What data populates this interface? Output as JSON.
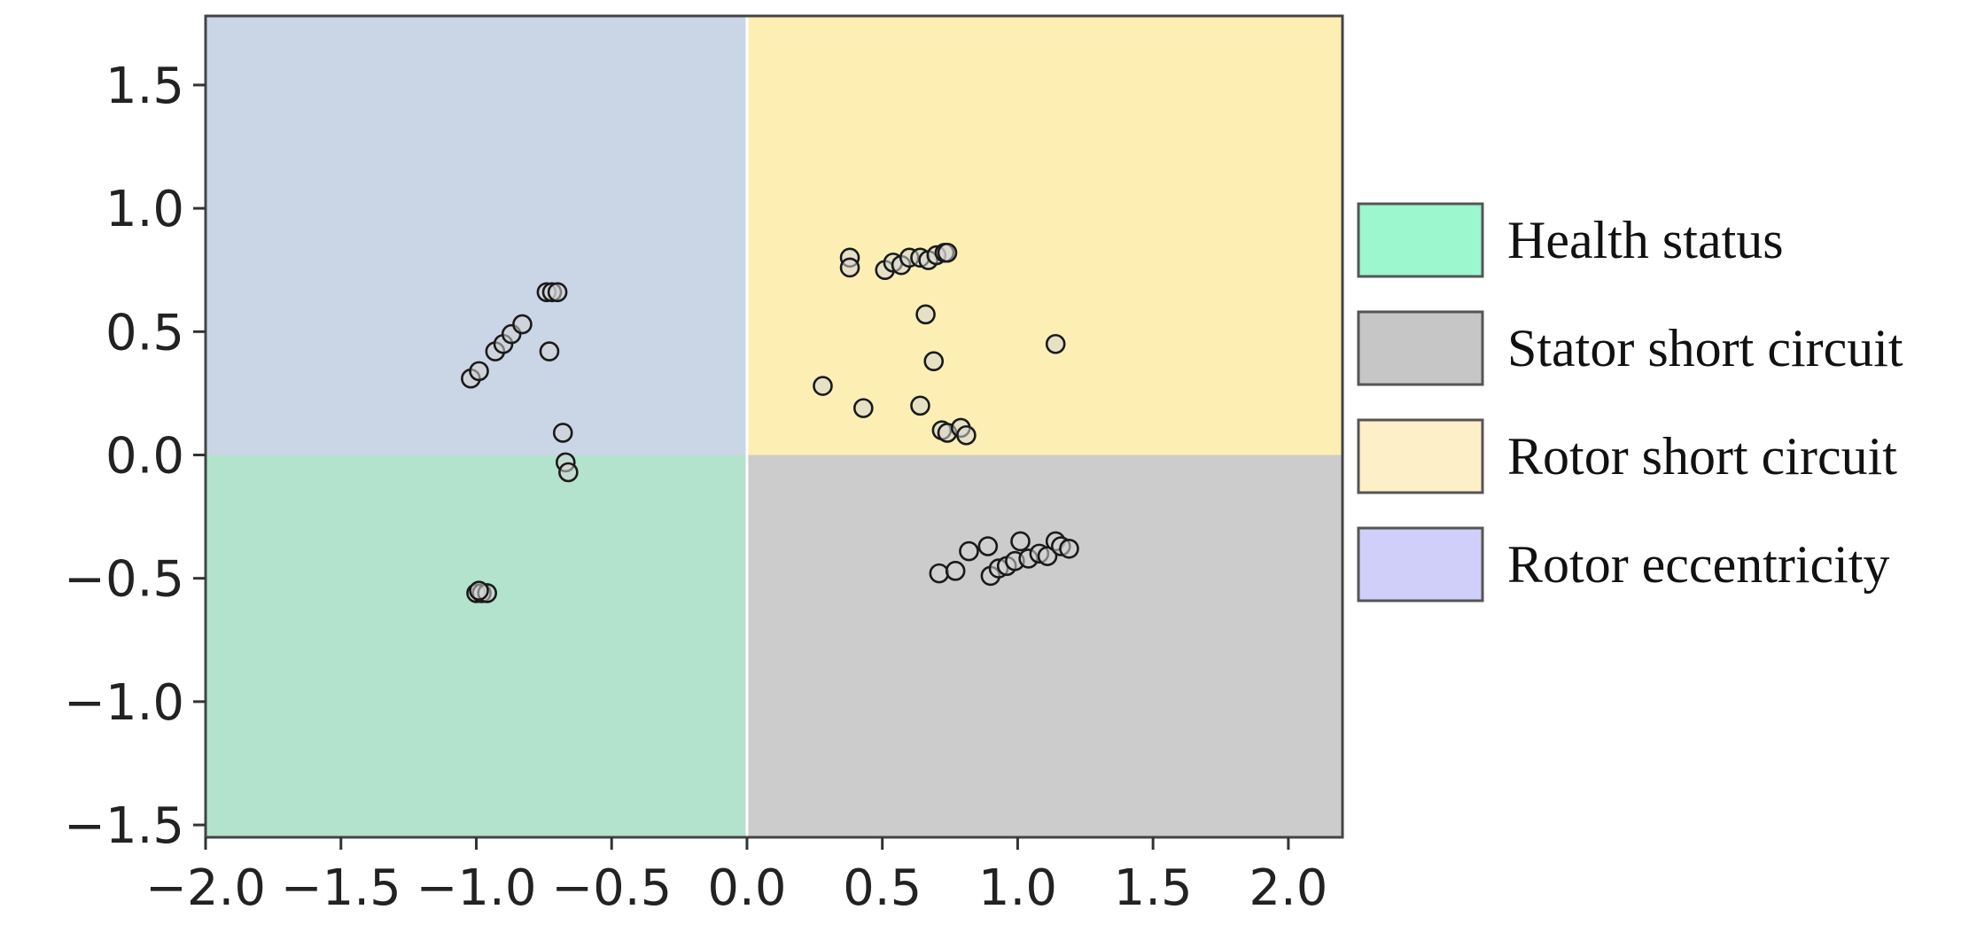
{
  "chart_data": {
    "type": "scatter",
    "title": "",
    "xlabel": "",
    "ylabel": "",
    "xlim": [
      -2.0,
      2.2
    ],
    "ylim": [
      -1.55,
      1.78
    ],
    "xticks": [
      -2.0,
      -1.5,
      -1.0,
      -0.5,
      0.0,
      0.5,
      1.0,
      1.5,
      2.0
    ],
    "xtick_labels": [
      "−2.0",
      "−1.5",
      "−1.0",
      "−0.5",
      "0.0",
      "0.5",
      "1.0",
      "1.5",
      "2.0"
    ],
    "yticks": [
      1.5,
      1.0,
      0.5,
      0.0,
      -0.5,
      -1.0,
      -1.5
    ],
    "ytick_labels": [
      "1.5",
      "1.0",
      "0.5",
      "0.0",
      "−0.5",
      "−1.0",
      "−1.5"
    ],
    "grid": false,
    "legend_position": "right",
    "regions": [
      {
        "name": "Rotor eccentricity",
        "x": [
          -2.0,
          0.0
        ],
        "y": [
          0.0,
          1.78
        ],
        "color": "#cad5e6"
      },
      {
        "name": "Rotor short circuit",
        "x": [
          0.0,
          2.2
        ],
        "y": [
          0.0,
          1.78
        ],
        "color": "#fdefb3"
      },
      {
        "name": "Health status",
        "x": [
          -2.0,
          0.0
        ],
        "y": [
          -1.55,
          0.0
        ],
        "color": "#b3e2cd"
      },
      {
        "name": "Stator short circuit",
        "x": [
          0.0,
          2.2
        ],
        "y": [
          -1.55,
          0.0
        ],
        "color": "#cccccc"
      }
    ],
    "legend": [
      {
        "label": "Health status",
        "color": "#9cf6ce"
      },
      {
        "label": "Stator short circuit",
        "color": "#c6c6c6"
      },
      {
        "label": "Rotor short circuit",
        "color": "#fdefc7"
      },
      {
        "label": "Rotor eccentricity",
        "color": "#cfcff9"
      }
    ],
    "series": [
      {
        "class": "Health status",
        "points": [
          [
            -1.0,
            -0.56
          ],
          [
            -0.98,
            -0.56
          ],
          [
            -0.96,
            -0.56
          ],
          [
            -0.99,
            -0.55
          ]
        ]
      },
      {
        "class": "Rotor eccentricity",
        "points": [
          [
            -1.02,
            0.31
          ],
          [
            -0.99,
            0.34
          ],
          [
            -0.93,
            0.42
          ],
          [
            -0.9,
            0.45
          ],
          [
            -0.87,
            0.49
          ],
          [
            -0.83,
            0.53
          ],
          [
            -0.74,
            0.66
          ],
          [
            -0.72,
            0.66
          ],
          [
            -0.7,
            0.66
          ],
          [
            -0.73,
            0.42
          ],
          [
            -0.68,
            0.09
          ],
          [
            -0.67,
            -0.03
          ],
          [
            -0.66,
            -0.07
          ]
        ]
      },
      {
        "class": "Rotor short circuit",
        "points": [
          [
            0.38,
            0.8
          ],
          [
            0.38,
            0.76
          ],
          [
            0.51,
            0.75
          ],
          [
            0.54,
            0.78
          ],
          [
            0.57,
            0.77
          ],
          [
            0.6,
            0.8
          ],
          [
            0.64,
            0.8
          ],
          [
            0.67,
            0.79
          ],
          [
            0.7,
            0.81
          ],
          [
            0.73,
            0.82
          ],
          [
            0.74,
            0.82
          ],
          [
            0.66,
            0.57
          ],
          [
            1.14,
            0.45
          ],
          [
            0.28,
            0.28
          ],
          [
            0.43,
            0.19
          ],
          [
            0.64,
            0.2
          ],
          [
            0.69,
            0.38
          ],
          [
            0.72,
            0.1
          ],
          [
            0.74,
            0.09
          ],
          [
            0.79,
            0.11
          ],
          [
            0.81,
            0.08
          ]
        ]
      },
      {
        "class": "Stator short circuit",
        "points": [
          [
            0.71,
            -0.48
          ],
          [
            0.77,
            -0.47
          ],
          [
            0.82,
            -0.39
          ],
          [
            0.89,
            -0.37
          ],
          [
            0.9,
            -0.49
          ],
          [
            0.93,
            -0.46
          ],
          [
            0.96,
            -0.45
          ],
          [
            0.99,
            -0.43
          ],
          [
            1.01,
            -0.35
          ],
          [
            1.04,
            -0.42
          ],
          [
            1.08,
            -0.4
          ],
          [
            1.11,
            -0.41
          ],
          [
            1.14,
            -0.35
          ],
          [
            1.16,
            -0.37
          ],
          [
            1.19,
            -0.38
          ]
        ]
      }
    ]
  }
}
